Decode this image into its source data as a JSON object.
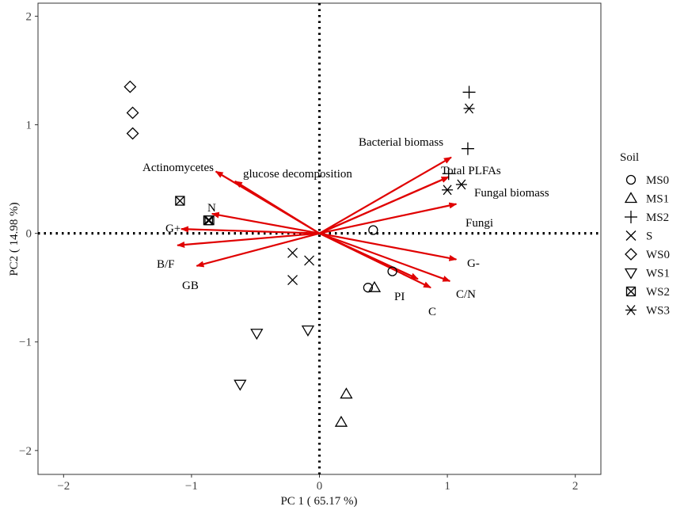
{
  "chart_data": {
    "type": "scatter",
    "xlabel": "PC 1 ( 65.17 %)",
    "ylabel": "PC2 ( 14.98 %)",
    "xlim": [
      -2.2,
      2.2
    ],
    "ylim": [
      -2.22,
      2.12
    ],
    "xticks": [
      -2,
      -1,
      0,
      1,
      2
    ],
    "yticks": [
      -2,
      -1,
      0,
      1,
      2
    ],
    "grid": false,
    "zero_lines": "dotted",
    "arrow_color": "#e00000",
    "legend": {
      "title": "Soil",
      "placement": "right"
    },
    "series": [
      {
        "name": "MS0",
        "marker": "circle",
        "points": [
          [
            0.42,
            0.03
          ],
          [
            0.57,
            -0.35
          ],
          [
            0.38,
            -0.5
          ]
        ]
      },
      {
        "name": "MS1",
        "marker": "triangle-up",
        "points": [
          [
            0.43,
            -0.5
          ],
          [
            0.21,
            -1.48
          ],
          [
            0.17,
            -1.74
          ]
        ]
      },
      {
        "name": "MS2",
        "marker": "plus",
        "points": [
          [
            1.17,
            1.3
          ],
          [
            1.16,
            0.78
          ],
          [
            1.01,
            0.55
          ]
        ]
      },
      {
        "name": "S",
        "marker": "x",
        "points": [
          [
            -0.21,
            -0.18
          ],
          [
            -0.21,
            -0.43
          ],
          [
            -0.08,
            -0.25
          ]
        ]
      },
      {
        "name": "WS0",
        "marker": "diamond",
        "points": [
          [
            -1.48,
            1.35
          ],
          [
            -1.46,
            1.11
          ],
          [
            -1.46,
            0.92
          ]
        ]
      },
      {
        "name": "WS1",
        "marker": "triangle-down",
        "points": [
          [
            -0.49,
            -0.92
          ],
          [
            -0.09,
            -0.89
          ],
          [
            -0.62,
            -1.39
          ]
        ]
      },
      {
        "name": "WS2",
        "marker": "square-x",
        "points": [
          [
            -1.09,
            0.3
          ],
          [
            -0.86,
            0.12
          ],
          [
            -0.87,
            0.12
          ]
        ]
      },
      {
        "name": "WS3",
        "marker": "asterisk",
        "points": [
          [
            1.17,
            1.15
          ],
          [
            1.11,
            0.45
          ],
          [
            1.0,
            0.4
          ]
        ]
      }
    ],
    "vectors": [
      {
        "label": "Bacterial biomass",
        "x": 1.03,
        "y": 0.7
      },
      {
        "label": "Total PLFAs",
        "x": 1.01,
        "y": 0.52
      },
      {
        "label": "Fungal biomass",
        "x": 1.01,
        "y": 0.52
      },
      {
        "label": "Fungi",
        "x": 1.07,
        "y": 0.27
      },
      {
        "label": "G-",
        "x": 1.07,
        "y": -0.24
      },
      {
        "label": "C/N",
        "x": 1.02,
        "y": -0.44
      },
      {
        "label": "C",
        "x": 0.87,
        "y": -0.5
      },
      {
        "label": "PI",
        "x": 0.77,
        "y": -0.42
      },
      {
        "label": "Actinomycetes",
        "x": -0.81,
        "y": 0.57
      },
      {
        "label": "glucose decomposition",
        "x": -0.66,
        "y": 0.48
      },
      {
        "label": "N",
        "x": -0.84,
        "y": 0.18
      },
      {
        "label": "G+",
        "x": -1.08,
        "y": 0.04
      },
      {
        "label": "B/F",
        "x": -1.11,
        "y": -0.11
      },
      {
        "label": "GB",
        "x": -0.96,
        "y": -0.3
      }
    ]
  }
}
